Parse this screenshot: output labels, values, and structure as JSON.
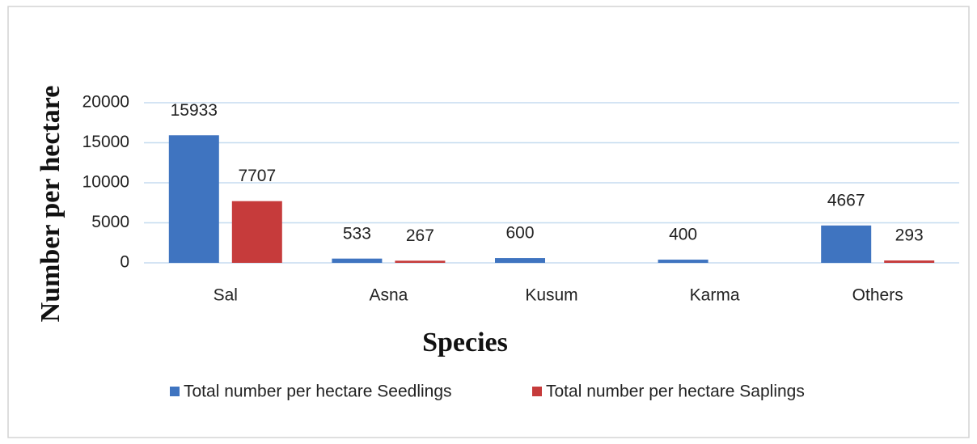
{
  "chart_data": {
    "type": "bar",
    "categories": [
      "Sal",
      "Asna",
      "Kusum",
      "Karma",
      "Others"
    ],
    "series": [
      {
        "name": "Total number per hectare Seedlings",
        "color": "#3f74c0",
        "values": [
          15933,
          533,
          600,
          400,
          4667
        ]
      },
      {
        "name": "Total number per hectare Saplings",
        "color": "#c63b3b",
        "values": [
          7707,
          267,
          null,
          null,
          293
        ]
      }
    ],
    "ylim": [
      0,
      20000
    ],
    "yticks": [
      0,
      5000,
      10000,
      15000,
      20000
    ],
    "grid": true,
    "ylabel": "Number per hectare",
    "xlabel": "Species",
    "legend": "bottom"
  }
}
